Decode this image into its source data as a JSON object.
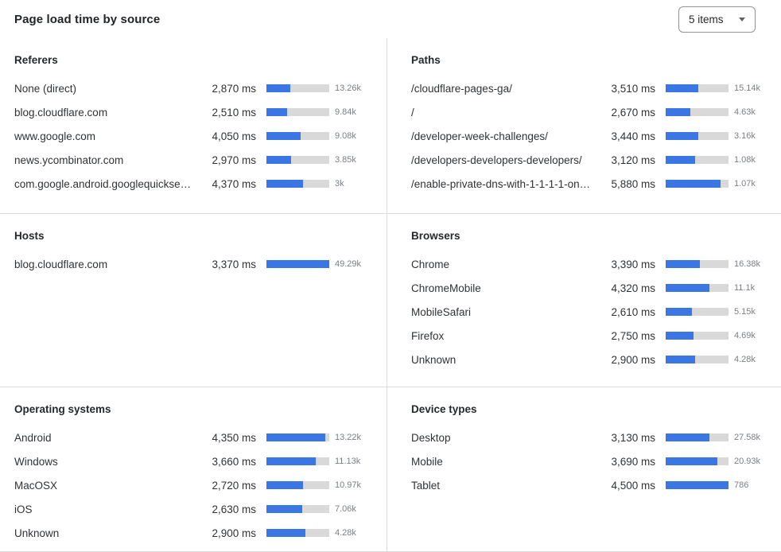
{
  "header": {
    "title": "Page load time by source",
    "items_select": {
      "value": "5 items"
    }
  },
  "colors": {
    "bar_fill": "#3b76e5",
    "bar_track": "#d9d9d9",
    "divider": "#dcdcdc"
  },
  "chart_data": {
    "type": "bar",
    "orientation": "horizontal",
    "panels": [
      {
        "title": "Referers",
        "bar_scale_ms": 7500,
        "rows": [
          {
            "label": "None (direct)",
            "ms": 2870,
            "ms_display": "2,870 ms",
            "count_display": "13.26k"
          },
          {
            "label": "blog.cloudflare.com",
            "ms": 2510,
            "ms_display": "2,510 ms",
            "count_display": "9.84k"
          },
          {
            "label": "www.google.com",
            "ms": 4050,
            "ms_display": "4,050 ms",
            "count_display": "9.08k"
          },
          {
            "label": "news.ycombinator.com",
            "ms": 2970,
            "ms_display": "2,970 ms",
            "count_display": "3.85k"
          },
          {
            "label": "com.google.android.googlequicksearc...",
            "ms": 4370,
            "ms_display": "4,370 ms",
            "count_display": "3k"
          }
        ]
      },
      {
        "title": "Paths",
        "bar_scale_ms": 6700,
        "rows": [
          {
            "label": "/cloudflare-pages-ga/",
            "ms": 3510,
            "ms_display": "3,510 ms",
            "count_display": "15.14k"
          },
          {
            "label": "/",
            "ms": 2670,
            "ms_display": "2,670 ms",
            "count_display": "4.63k"
          },
          {
            "label": "/developer-week-challenges/",
            "ms": 3440,
            "ms_display": "3,440 ms",
            "count_display": "3.16k"
          },
          {
            "label": "/developers-developers-developers/",
            "ms": 3120,
            "ms_display": "3,120 ms",
            "count_display": "1.08k"
          },
          {
            "label": "/enable-private-dns-with-1-1-1-1-on-...",
            "ms": 5880,
            "ms_display": "5,880 ms",
            "count_display": "1.07k"
          }
        ]
      },
      {
        "title": "Hosts",
        "bar_scale_ms": 3370,
        "rows": [
          {
            "label": "blog.cloudflare.com",
            "ms": 3370,
            "ms_display": "3,370 ms",
            "count_display": "49.29k"
          }
        ]
      },
      {
        "title": "Browsers",
        "bar_scale_ms": 6200,
        "rows": [
          {
            "label": "Chrome",
            "ms": 3390,
            "ms_display": "3,390 ms",
            "count_display": "16.38k"
          },
          {
            "label": "ChromeMobile",
            "ms": 4320,
            "ms_display": "4,320 ms",
            "count_display": "11.1k"
          },
          {
            "label": "MobileSafari",
            "ms": 2610,
            "ms_display": "2,610 ms",
            "count_display": "5.15k"
          },
          {
            "label": "Firefox",
            "ms": 2750,
            "ms_display": "2,750 ms",
            "count_display": "4.69k"
          },
          {
            "label": "Unknown",
            "ms": 2900,
            "ms_display": "2,900 ms",
            "count_display": "4.28k"
          }
        ]
      },
      {
        "title": "Operating systems",
        "bar_scale_ms": 4650,
        "rows": [
          {
            "label": "Android",
            "ms": 4350,
            "ms_display": "4,350 ms",
            "count_display": "13.22k"
          },
          {
            "label": "Windows",
            "ms": 3660,
            "ms_display": "3,660 ms",
            "count_display": "11.13k"
          },
          {
            "label": "MacOSX",
            "ms": 2720,
            "ms_display": "2,720 ms",
            "count_display": "10.97k"
          },
          {
            "label": "iOS",
            "ms": 2630,
            "ms_display": "2,630 ms",
            "count_display": "7.06k"
          },
          {
            "label": "Unknown",
            "ms": 2900,
            "ms_display": "2,900 ms",
            "count_display": "4.28k"
          }
        ]
      },
      {
        "title": "Device types",
        "bar_scale_ms": 4500,
        "rows": [
          {
            "label": "Desktop",
            "ms": 3130,
            "ms_display": "3,130 ms",
            "count_display": "27.58k"
          },
          {
            "label": "Mobile",
            "ms": 3690,
            "ms_display": "3,690 ms",
            "count_display": "20.93k"
          },
          {
            "label": "Tablet",
            "ms": 4500,
            "ms_display": "4,500 ms",
            "count_display": "786"
          }
        ]
      }
    ]
  }
}
